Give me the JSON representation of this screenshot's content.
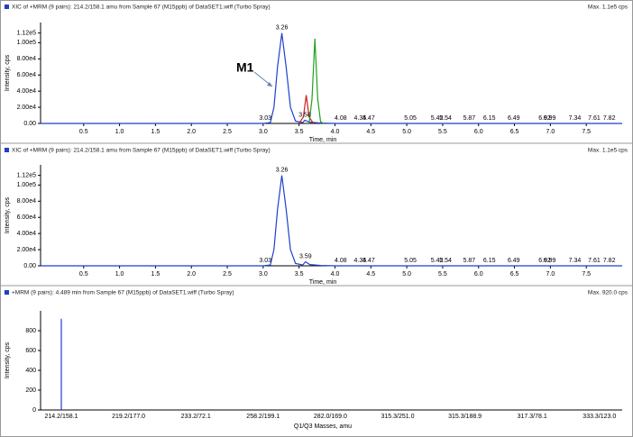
{
  "chart_data": [
    {
      "type": "line",
      "title": "XIC of +MRM (9 pairs): 214.2/158.1 amu from Sample 67 (M15ppb) of DataSET1.wiff (Turbo Spray)",
      "subtitle": "Max. 1.1e5 cps",
      "xlabel": "Time, min",
      "ylabel": "Intensity, cps",
      "annotation": "M1",
      "xlim": [
        -0.1,
        8.0
      ],
      "xticks": [
        0.5,
        {
          "value": 1,
          "label": "1.0"
        },
        1.5,
        {
          "value": 2,
          "label": "2.0"
        },
        2.5,
        {
          "value": 3,
          "label": "3.0"
        },
        3.5,
        {
          "value": 4,
          "label": "4.0"
        },
        4.5,
        {
          "value": 5,
          "label": "5.0"
        },
        5.5,
        {
          "value": 6,
          "label": "6.0"
        },
        6.5,
        {
          "value": 7,
          "label": "7.0"
        },
        7.5
      ],
      "ylim": [
        0,
        125000
      ],
      "yticks": [
        {
          "value": 0,
          "label": "0.00"
        },
        {
          "value": 20000,
          "label": "2.00e4"
        },
        {
          "value": 40000,
          "label": "4.00e4"
        },
        {
          "value": 60000,
          "label": "6.00e4"
        },
        {
          "value": 80000,
          "label": "8.00e4"
        },
        {
          "value": 100000,
          "label": "1.00e5"
        },
        {
          "value": 112000,
          "label": "1.12e5"
        }
      ],
      "series": [
        {
          "color": "#1f3fd0",
          "x": [
            -0.1,
            3.0,
            3.1,
            3.15,
            3.2,
            3.26,
            3.32,
            3.38,
            3.45,
            3.55,
            3.58,
            3.65,
            3.8,
            4.0,
            8.0
          ],
          "values": [
            0,
            0,
            1000,
            20000,
            70000,
            112000,
            70000,
            20000,
            3000,
            1000,
            4000,
            1500,
            500,
            0,
            0
          ]
        },
        {
          "color": "#d02020",
          "x": [
            3.5,
            3.56,
            3.6,
            3.64,
            3.7
          ],
          "values": [
            0,
            8000,
            35000,
            8000,
            0
          ]
        },
        {
          "color": "#20a020",
          "x": [
            3.64,
            3.68,
            3.72,
            3.76,
            3.8,
            3.85
          ],
          "values": [
            0,
            30000,
            105000,
            30000,
            2000,
            0
          ]
        }
      ],
      "peaks": [
        {
          "x": 3.03,
          "y": 0
        },
        {
          "x": 3.26,
          "y": 112000
        },
        {
          "x": 3.58,
          "y": 4000
        },
        {
          "x": 4.08,
          "y": 0
        },
        {
          "x": 4.35,
          "y": 0
        },
        {
          "x": 4.47,
          "y": 0
        },
        {
          "x": 5.05,
          "y": 0
        },
        {
          "x": 5.42,
          "y": 0
        },
        {
          "x": 5.54,
          "y": 0
        },
        {
          "x": 5.87,
          "y": 0
        },
        {
          "x": 6.15,
          "y": 0
        },
        {
          "x": 6.49,
          "y": 0
        },
        {
          "x": 6.92,
          "y": 0
        },
        {
          "x": 6.99,
          "y": 0
        },
        {
          "x": 7.34,
          "y": 0
        },
        {
          "x": 7.61,
          "y": 0
        },
        {
          "x": 7.82,
          "y": 0
        }
      ]
    },
    {
      "type": "line",
      "title": "XIC of +MRM (9 pairs): 214.2/158.1 amu from Sample 67 (M15ppb) of DataSET1.wiff (Turbo Spray)",
      "subtitle": "Max. 1.1e5 cps",
      "xlabel": "Time, min",
      "ylabel": "Intensity, cps",
      "xlim": [
        -0.1,
        8.0
      ],
      "xticks": [
        0.5,
        {
          "value": 1,
          "label": "1.0"
        },
        1.5,
        {
          "value": 2,
          "label": "2.0"
        },
        2.5,
        {
          "value": 3,
          "label": "3.0"
        },
        3.5,
        {
          "value": 4,
          "label": "4.0"
        },
        4.5,
        {
          "value": 5,
          "label": "5.0"
        },
        5.5,
        {
          "value": 6,
          "label": "6.0"
        },
        6.5,
        {
          "value": 7,
          "label": "7.0"
        },
        7.5
      ],
      "ylim": [
        0,
        125000
      ],
      "yticks": [
        {
          "value": 0,
          "label": "0.00"
        },
        {
          "value": 20000,
          "label": "2.00e4"
        },
        {
          "value": 40000,
          "label": "4.00e4"
        },
        {
          "value": 60000,
          "label": "6.00e4"
        },
        {
          "value": 80000,
          "label": "8.00e4"
        },
        {
          "value": 100000,
          "label": "1.00e5"
        },
        {
          "value": 112000,
          "label": "1.12e5"
        }
      ],
      "series": [
        {
          "color": "#1f3fd0",
          "x": [
            -0.1,
            3.0,
            3.1,
            3.15,
            3.2,
            3.26,
            3.32,
            3.38,
            3.45,
            3.55,
            3.59,
            3.65,
            3.8,
            4.0,
            8.0
          ],
          "values": [
            0,
            0,
            1000,
            20000,
            70000,
            112000,
            70000,
            20000,
            3000,
            1000,
            5000,
            1500,
            500,
            0,
            0
          ]
        }
      ],
      "peaks": [
        {
          "x": 3.03,
          "y": 0
        },
        {
          "x": 3.26,
          "y": 112000
        },
        {
          "x": 3.59,
          "y": 5000
        },
        {
          "x": 4.08,
          "y": 0
        },
        {
          "x": 4.35,
          "y": 0
        },
        {
          "x": 4.47,
          "y": 0
        },
        {
          "x": 5.05,
          "y": 0
        },
        {
          "x": 5.42,
          "y": 0
        },
        {
          "x": 5.54,
          "y": 0
        },
        {
          "x": 5.87,
          "y": 0
        },
        {
          "x": 6.15,
          "y": 0
        },
        {
          "x": 6.49,
          "y": 0
        },
        {
          "x": 6.92,
          "y": 0
        },
        {
          "x": 6.99,
          "y": 0
        },
        {
          "x": 7.34,
          "y": 0
        },
        {
          "x": 7.61,
          "y": 0
        },
        {
          "x": 7.82,
          "y": 0
        }
      ]
    },
    {
      "type": "bar",
      "title": "+MRM (9 pairs): 4.489 min from Sample 67 (M15ppb) of DataSET1.wiff (Turbo Spray)",
      "subtitle": "Max. 920.0 cps",
      "xlabel": "Q1/Q3 Masses, amu",
      "ylabel": "Intensity, cps",
      "categories": [
        "214.2/158.1",
        "219.2/177.0",
        "233.2/72.1",
        "258.2/199.1",
        "282.0/169.0",
        "315.3/251.0",
        "315.3/188.9",
        "317.3/78.1",
        "333.3/123.0"
      ],
      "values": [
        920,
        0,
        0,
        0,
        0,
        0,
        0,
        0,
        0
      ],
      "color": "#1f3fd0",
      "ylim": [
        0,
        1000
      ],
      "yticks": [
        0,
        200,
        400,
        600,
        800
      ]
    }
  ]
}
